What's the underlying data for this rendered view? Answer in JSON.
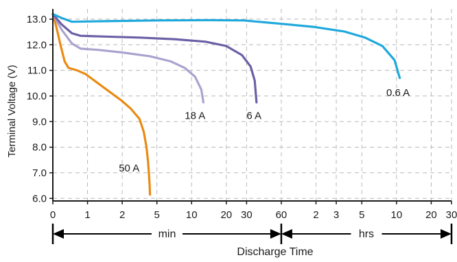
{
  "chart_data": {
    "type": "line",
    "ylabel": "Terminal Voltage (V)",
    "xlabel": "Discharge Time",
    "ylim": [
      5.9,
      13.4
    ],
    "yticks": [
      "13.0",
      "12.0",
      "11.0",
      "10.0",
      "9.0",
      "8.0",
      "7.0",
      "6.0"
    ],
    "ytick_values": [
      13,
      12,
      11,
      10,
      9,
      8,
      7,
      6
    ],
    "xticks": [
      {
        "label": "0",
        "u": 0
      },
      {
        "label": "1",
        "u": 1
      },
      {
        "label": "2",
        "u": 2
      },
      {
        "label": "5",
        "u": 3
      },
      {
        "label": "10",
        "u": 4
      },
      {
        "label": "20",
        "u": 5
      },
      {
        "label": "30",
        "u": 5.585
      },
      {
        "label": "60",
        "u": 6.585
      },
      {
        "label": "2",
        "u": 7.585
      },
      {
        "label": "3",
        "u": 8.17
      },
      {
        "label": "5",
        "u": 8.907
      },
      {
        "label": "10",
        "u": 9.907
      },
      {
        "label": "20",
        "u": 10.907
      },
      {
        "label": "30",
        "u": 11.492
      }
    ],
    "grid": true,
    "ranges": [
      {
        "label": "min",
        "from_u": 0,
        "to_u": 6.585
      },
      {
        "label": "hrs",
        "from_u": 6.585,
        "to_u": 11.492
      }
    ],
    "series": [
      {
        "name": "50 A",
        "color": "#e98a12",
        "points": [
          [
            0,
            13.2
          ],
          [
            0.1,
            12.7
          ],
          [
            0.22,
            12.0
          ],
          [
            0.34,
            11.35
          ],
          [
            0.45,
            11.1
          ],
          [
            0.7,
            11.0
          ],
          [
            0.95,
            10.85
          ],
          [
            1.3,
            10.5
          ],
          [
            1.65,
            10.15
          ],
          [
            2.0,
            9.8
          ],
          [
            2.25,
            9.5
          ],
          [
            2.5,
            9.1
          ],
          [
            2.62,
            8.6
          ],
          [
            2.7,
            8.0
          ],
          [
            2.74,
            7.5
          ],
          [
            2.77,
            7.0
          ],
          [
            2.79,
            6.5
          ],
          [
            2.8,
            6.15
          ]
        ]
      },
      {
        "name": "18 A",
        "color": "#a9a3cf",
        "points": [
          [
            0,
            13.2
          ],
          [
            0.25,
            12.6
          ],
          [
            0.55,
            12.05
          ],
          [
            0.8,
            11.85
          ],
          [
            1.3,
            11.8
          ],
          [
            2.0,
            11.7
          ],
          [
            2.8,
            11.55
          ],
          [
            3.4,
            11.35
          ],
          [
            3.8,
            11.1
          ],
          [
            4.1,
            10.75
          ],
          [
            4.28,
            10.25
          ],
          [
            4.34,
            9.75
          ]
        ]
      },
      {
        "name": "6 A",
        "color": "#6b5fa6",
        "points": [
          [
            0,
            13.2
          ],
          [
            0.25,
            12.8
          ],
          [
            0.55,
            12.45
          ],
          [
            0.8,
            12.35
          ],
          [
            1.5,
            12.32
          ],
          [
            2.5,
            12.28
          ],
          [
            3.5,
            12.22
          ],
          [
            4.4,
            12.12
          ],
          [
            5.0,
            11.95
          ],
          [
            5.45,
            11.6
          ],
          [
            5.7,
            11.15
          ],
          [
            5.82,
            10.6
          ],
          [
            5.87,
            9.75
          ]
        ]
      },
      {
        "name": "0.6 A",
        "color": "#1ea8dc",
        "points": [
          [
            0,
            13.2
          ],
          [
            0.25,
            13.05
          ],
          [
            0.55,
            12.9
          ],
          [
            1.5,
            12.92
          ],
          [
            3.0,
            12.95
          ],
          [
            4.5,
            12.96
          ],
          [
            5.5,
            12.95
          ],
          [
            6.585,
            12.82
          ],
          [
            7.5,
            12.7
          ],
          [
            8.4,
            12.52
          ],
          [
            9.0,
            12.28
          ],
          [
            9.5,
            11.95
          ],
          [
            9.85,
            11.4
          ],
          [
            10.0,
            10.7
          ]
        ]
      }
    ],
    "labels": [
      {
        "text": "50 A",
        "x": 2.2,
        "y": 7.05
      },
      {
        "text": "18 A",
        "x": 4.1,
        "y": 9.1
      },
      {
        "text": "6 A",
        "x": 5.8,
        "y": 9.1
      },
      {
        "text": "0.6 A",
        "x": 9.95,
        "y": 10.0
      }
    ]
  }
}
